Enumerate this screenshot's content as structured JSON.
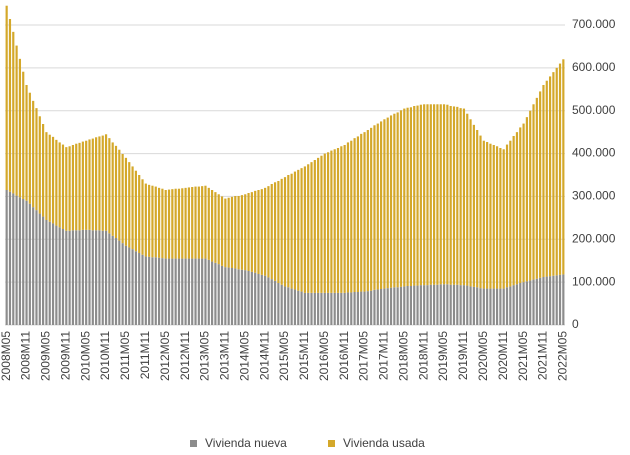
{
  "chart_data": {
    "type": "stacked_bar",
    "categories": [
      "2008M05",
      null,
      null,
      null,
      null,
      null,
      "2008M11",
      null,
      null,
      null,
      null,
      null,
      "2009M05",
      null,
      null,
      null,
      null,
      null,
      "2009M11",
      null,
      null,
      null,
      null,
      null,
      "2010M05",
      null,
      null,
      null,
      null,
      null,
      "2010M11",
      null,
      null,
      null,
      null,
      null,
      "2011M05",
      null,
      null,
      null,
      null,
      null,
      "2011M11",
      null,
      null,
      null,
      null,
      null,
      "2012M05",
      null,
      null,
      null,
      null,
      null,
      "2012M11",
      null,
      null,
      null,
      null,
      null,
      "2013M05",
      null,
      null,
      null,
      null,
      null,
      "2013M11",
      null,
      null,
      null,
      null,
      null,
      "2014M05",
      null,
      null,
      null,
      null,
      null,
      "2014M11",
      null,
      null,
      null,
      null,
      null,
      "2015M05",
      null,
      null,
      null,
      null,
      null,
      "2015M11",
      null,
      null,
      null,
      null,
      null,
      "2016M05",
      null,
      null,
      null,
      null,
      null,
      "2016M11",
      null,
      null,
      null,
      null,
      null,
      "2017M05",
      null,
      null,
      null,
      null,
      null,
      "2017M11",
      null,
      null,
      null,
      null,
      null,
      "2018M05",
      null,
      null,
      null,
      null,
      null,
      "2018M11",
      null,
      null,
      null,
      null,
      null,
      "2019M05",
      null,
      null,
      null,
      null,
      null,
      "2019M11",
      null,
      null,
      null,
      null,
      null,
      "2020M05",
      null,
      null,
      null,
      null,
      null,
      "2020M11",
      null,
      null,
      null,
      null,
      null,
      "2021M05",
      null,
      null,
      null,
      null,
      null,
      "2021M11",
      null,
      null,
      null,
      null,
      null,
      "2022M05"
    ],
    "series": [
      {
        "name": "Vivienda nueva",
        "color": "#8c8c8c",
        "values": [
          315000,
          311000,
          307000,
          302000,
          298000,
          294000,
          290000,
          283000,
          275000,
          268000,
          260000,
          253000,
          245000,
          241000,
          237000,
          232000,
          228000,
          224000,
          220000,
          220000,
          221000,
          221000,
          221000,
          222000,
          222000,
          222000,
          221000,
          221000,
          221000,
          220000,
          220000,
          214000,
          208000,
          203000,
          197000,
          191000,
          185000,
          181000,
          177000,
          172000,
          168000,
          164000,
          160000,
          159000,
          158000,
          158000,
          157000,
          156000,
          155000,
          155000,
          155000,
          155000,
          155000,
          155000,
          155000,
          155000,
          155000,
          155000,
          155000,
          155000,
          155000,
          152000,
          148000,
          145000,
          142000,
          138000,
          135000,
          134000,
          133000,
          132000,
          130000,
          129000,
          128000,
          126000,
          124000,
          122000,
          119000,
          117000,
          115000,
          111000,
          107000,
          103000,
          98000,
          94000,
          90000,
          88000,
          85000,
          83000,
          80000,
          78000,
          75000,
          75000,
          75000,
          75000,
          75000,
          75000,
          75000,
          75000,
          75000,
          75000,
          75000,
          75000,
          75000,
          76000,
          76000,
          77000,
          77000,
          78000,
          78000,
          79000,
          80000,
          82000,
          83000,
          84000,
          85000,
          86000,
          87000,
          88000,
          88000,
          89000,
          90000,
          91000,
          91000,
          92000,
          92000,
          93000,
          93000,
          93000,
          94000,
          94000,
          94000,
          95000,
          95000,
          95000,
          94000,
          94000,
          94000,
          93000,
          93000,
          92000,
          90000,
          89000,
          88000,
          86000,
          85000,
          85000,
          85000,
          85000,
          85000,
          85000,
          85000,
          88000,
          90000,
          93000,
          95000,
          98000,
          100000,
          102000,
          104000,
          106000,
          108000,
          110000,
          112000,
          113000,
          114000,
          115000,
          116000,
          117000,
          118000
        ]
      },
      {
        "name": "Vivienda usada",
        "color": "#d4a82a",
        "values": [
          430000,
          403000,
          377000,
          350000,
          323000,
          297000,
          270000,
          259000,
          248000,
          238000,
          227000,
          216000,
          205000,
          203000,
          202000,
          200000,
          198000,
          197000,
          195000,
          197000,
          199000,
          202000,
          204000,
          206000,
          208000,
          211000,
          214000,
          217000,
          219000,
          222000,
          225000,
          222000,
          218000,
          215000,
          212000,
          208000,
          205000,
          199000,
          193000,
          188000,
          182000,
          176000,
          170000,
          168000,
          167000,
          165000,
          163000,
          162000,
          160000,
          161000,
          162000,
          163000,
          163000,
          164000,
          165000,
          166000,
          167000,
          168000,
          168000,
          169000,
          170000,
          168000,
          167000,
          165000,
          163000,
          162000,
          160000,
          163000,
          166000,
          169000,
          171000,
          174000,
          177000,
          182000,
          186000,
          191000,
          196000,
          200000,
          205000,
          213000,
          222000,
          230000,
          238000,
          247000,
          255000,
          262000,
          268000,
          275000,
          282000,
          288000,
          295000,
          300000,
          305000,
          310000,
          315000,
          320000,
          325000,
          328000,
          332000,
          335000,
          338000,
          342000,
          345000,
          350000,
          354000,
          359000,
          363000,
          368000,
          372000,
          376000,
          380000,
          384000,
          387000,
          391000,
          395000,
          398000,
          402000,
          405000,
          408000,
          412000,
          415000,
          416000,
          417000,
          419000,
          420000,
          421000,
          422000,
          422000,
          421000,
          421000,
          421000,
          420000,
          420000,
          419000,
          417000,
          416000,
          415000,
          413000,
          412000,
          401000,
          390000,
          378000,
          367000,
          356000,
          345000,
          342000,
          338000,
          335000,
          332000,
          328000,
          325000,
          333000,
          340000,
          348000,
          355000,
          363000,
          370000,
          383000,
          396000,
          409000,
          422000,
          435000,
          448000,
          457000,
          466000,
          475000,
          484000,
          493000,
          502000
        ]
      }
    ],
    "ylim": [
      0,
      750000
    ],
    "yticks": [
      0,
      {
        "value": 100000,
        "label": "100.000"
      },
      {
        "value": 200000,
        "label": "200.000"
      },
      {
        "value": 300000,
        "label": "300.000"
      },
      {
        "value": 400000,
        "label": "400.000"
      },
      {
        "value": 500000,
        "label": "500.000"
      },
      {
        "value": 600000,
        "label": "600.000"
      },
      {
        "value": 700000,
        "label": "700.000"
      }
    ],
    "grid": true,
    "legend": "bottom"
  }
}
